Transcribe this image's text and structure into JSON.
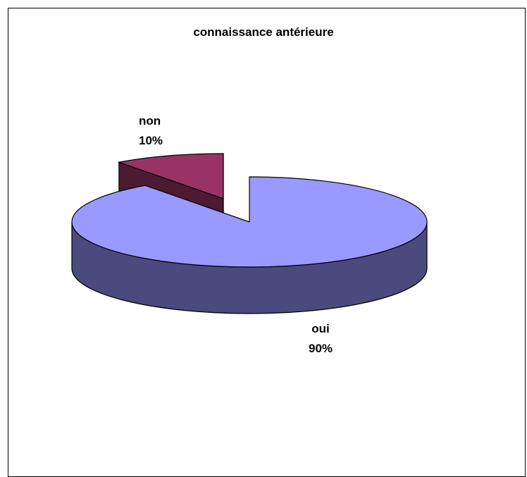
{
  "chart_data": {
    "type": "pie",
    "title": "connaissance antérieure",
    "three_d": true,
    "exploded": "non",
    "slices": [
      {
        "label": "oui",
        "percent_label": "90%",
        "value": 90,
        "color": "#9999ff",
        "side_color": "#4a4a7e"
      },
      {
        "label": "non",
        "percent_label": "10%",
        "value": 10,
        "color": "#993366",
        "side_color": "#4d1a33"
      }
    ]
  }
}
